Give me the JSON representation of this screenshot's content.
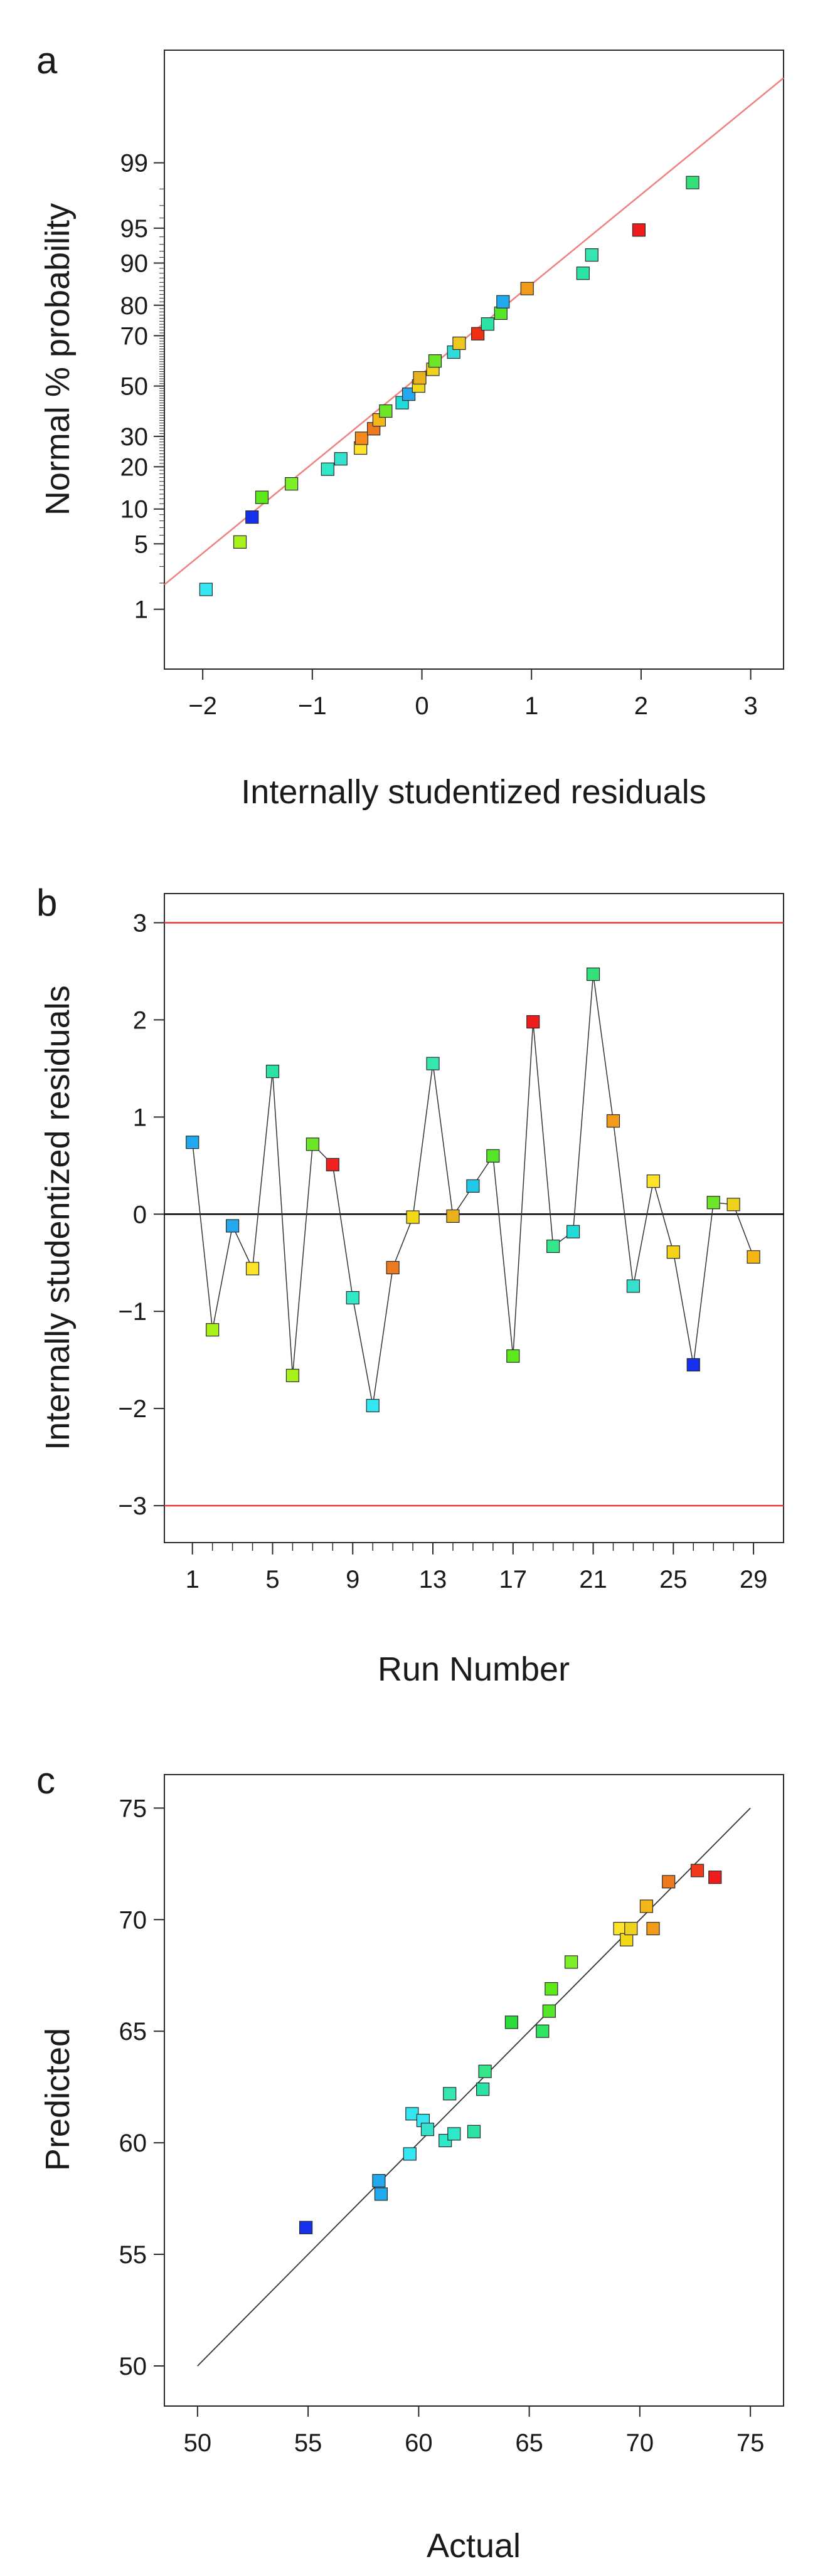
{
  "figure": {
    "panels": [
      "a",
      "b",
      "c"
    ]
  },
  "colors": {
    "fit_line": "#f08080",
    "control_limit": "#e83a3a",
    "zero_line": "#000000",
    "connector": "#333333",
    "diagonal": "#333333",
    "axis": "#2a2a2a"
  },
  "chart_data": [
    {
      "panel": "a",
      "type": "scatter",
      "subtype": "normal-probability-plot",
      "title": "",
      "xlabel": "Internally studentized residuals",
      "ylabel": "Normal % probability",
      "xlim": [
        -2.35,
        3.3
      ],
      "xticks": [
        -2,
        -1,
        0,
        1,
        2,
        3
      ],
      "ylim_z": [
        -2.95,
        3.5
      ],
      "yticks": [
        1,
        5,
        10,
        20,
        30,
        50,
        70,
        80,
        90,
        95,
        99
      ],
      "fit_line": {
        "x": [
          -2.35,
          3.3
        ],
        "z": [
          -2.07,
          3.21
        ]
      },
      "points": [
        {
          "x": -1.97,
          "p": 1.7,
          "color": "#33e6f2"
        },
        {
          "x": -1.66,
          "p": 5.2,
          "color": "#a8f21a"
        },
        {
          "x": -1.55,
          "p": 8.6,
          "color": "#1430ec"
        },
        {
          "x": -1.46,
          "p": 12.3,
          "color": "#5eea1a"
        },
        {
          "x": -1.19,
          "p": 15.4,
          "color": "#7ef02a"
        },
        {
          "x": -0.86,
          "p": 19.3,
          "color": "#2fe8c8"
        },
        {
          "x": -0.74,
          "p": 22.4,
          "color": "#35e0cc"
        },
        {
          "x": -0.56,
          "p": 25.9,
          "color": "#fce32a"
        },
        {
          "x": -0.55,
          "p": 29.3,
          "color": "#f28a1c"
        },
        {
          "x": -0.44,
          "p": 32.8,
          "color": "#ee7a1f"
        },
        {
          "x": -0.39,
          "p": 36.2,
          "color": "#f5b716"
        },
        {
          "x": -0.33,
          "p": 39.7,
          "color": "#6ee628"
        },
        {
          "x": -0.18,
          "p": 43.1,
          "color": "#20dcd8"
        },
        {
          "x": -0.12,
          "p": 46.6,
          "color": "#25a8ee"
        },
        {
          "x": -0.03,
          "p": 50.0,
          "color": "#f3d818"
        },
        {
          "x": -0.02,
          "p": 53.4,
          "color": "#e7b21c"
        },
        {
          "x": 0.1,
          "p": 56.9,
          "color": "#eed21d"
        },
        {
          "x": 0.12,
          "p": 60.3,
          "color": "#6ee628"
        },
        {
          "x": 0.29,
          "p": 63.8,
          "color": "#2fdcd8"
        },
        {
          "x": 0.34,
          "p": 67.2,
          "color": "#eec81e"
        },
        {
          "x": 0.51,
          "p": 70.7,
          "color": "#ef2e14"
        },
        {
          "x": 0.6,
          "p": 74.1,
          "color": "#2be3a6"
        },
        {
          "x": 0.72,
          "p": 77.6,
          "color": "#55e62a"
        },
        {
          "x": 0.74,
          "p": 81.0,
          "color": "#20a9ee"
        },
        {
          "x": 0.96,
          "p": 84.5,
          "color": "#f29a1a"
        },
        {
          "x": 1.47,
          "p": 88.0,
          "color": "#2be3a6"
        },
        {
          "x": 1.55,
          "p": 91.4,
          "color": "#35e6b0"
        },
        {
          "x": 1.98,
          "p": 94.8,
          "color": "#ee1c1c"
        },
        {
          "x": 2.47,
          "p": 98.3,
          "color": "#33e07a"
        }
      ]
    },
    {
      "panel": "b",
      "type": "line",
      "subtype": "residuals-vs-run",
      "title": "",
      "xlabel": "Run Number",
      "ylabel": "Internally studentized residuals",
      "xlim": [
        -0.4,
        30.5
      ],
      "xticks": [
        1,
        5,
        9,
        13,
        17,
        21,
        25,
        29
      ],
      "ylim": [
        -3.38,
        3.3
      ],
      "yticks": [
        -3,
        -2,
        -1,
        0,
        1,
        2,
        3
      ],
      "control_limits": [
        3,
        -3
      ],
      "x": [
        1,
        2,
        3,
        4,
        5,
        6,
        7,
        8,
        9,
        10,
        11,
        12,
        13,
        14,
        15,
        16,
        17,
        18,
        19,
        20,
        21,
        22,
        23,
        24,
        25,
        26,
        27,
        28,
        29
      ],
      "values": [
        0.74,
        -1.19,
        -0.12,
        -0.56,
        1.47,
        -1.66,
        0.72,
        0.51,
        -0.86,
        -1.97,
        -0.55,
        -0.03,
        1.55,
        -0.02,
        0.29,
        0.6,
        -1.46,
        1.98,
        -0.33,
        -0.18,
        2.47,
        0.96,
        -0.74,
        0.34,
        -0.39,
        -1.55,
        0.12,
        0.1,
        -0.44
      ],
      "colors": [
        "#20a9ee",
        "#a8f21a",
        "#25a8ee",
        "#fce32a",
        "#2be3a6",
        "#a8f21a",
        "#6ee628",
        "#ee2020",
        "#2fe8c8",
        "#33e6f2",
        "#ee7a1f",
        "#f3d818",
        "#35e6b0",
        "#e7b21c",
        "#20c9e8",
        "#55e62a",
        "#5eea1a",
        "#ee1c1c",
        "#35e68a",
        "#20dcd8",
        "#33e07a",
        "#f29a1a",
        "#35e0cc",
        "#fce32a",
        "#f5d318",
        "#1430ec",
        "#6ee628",
        "#eed21d",
        "#f5b716"
      ]
    },
    {
      "panel": "c",
      "type": "scatter",
      "subtype": "predicted-vs-actual",
      "title": "",
      "xlabel": "Actual",
      "ylabel": "Predicted",
      "xlim": [
        48.5,
        76.5
      ],
      "xticks": [
        50,
        55,
        60,
        65,
        70,
        75
      ],
      "ylim": [
        48.2,
        76.5
      ],
      "yticks": [
        50,
        55,
        60,
        65,
        70,
        75
      ],
      "diagonal": [
        [
          50,
          50
        ],
        [
          75,
          75
        ]
      ],
      "points": [
        {
          "x": 54.9,
          "y": 56.2,
          "color": "#1430ec"
        },
        {
          "x": 58.2,
          "y": 58.3,
          "color": "#20a9ee"
        },
        {
          "x": 58.3,
          "y": 57.7,
          "color": "#20a9ee"
        },
        {
          "x": 59.6,
          "y": 59.5,
          "color": "#33e6f2"
        },
        {
          "x": 59.7,
          "y": 61.3,
          "color": "#33e6f2"
        },
        {
          "x": 60.2,
          "y": 61.0,
          "color": "#33e6f2"
        },
        {
          "x": 60.4,
          "y": 60.6,
          "color": "#35e0cc"
        },
        {
          "x": 61.2,
          "y": 60.1,
          "color": "#2fe8c8"
        },
        {
          "x": 61.4,
          "y": 62.2,
          "color": "#35e6b0"
        },
        {
          "x": 61.6,
          "y": 60.4,
          "color": "#2fe8c8"
        },
        {
          "x": 62.5,
          "y": 60.5,
          "color": "#2be3a6"
        },
        {
          "x": 62.9,
          "y": 62.4,
          "color": "#2be3a6"
        },
        {
          "x": 63.0,
          "y": 63.2,
          "color": "#35e68a"
        },
        {
          "x": 64.2,
          "y": 65.4,
          "color": "#2bdc3a"
        },
        {
          "x": 65.6,
          "y": 65.0,
          "color": "#2ee660"
        },
        {
          "x": 65.9,
          "y": 65.9,
          "color": "#55e62a"
        },
        {
          "x": 66.0,
          "y": 66.9,
          "color": "#5eea1a"
        },
        {
          "x": 66.9,
          "y": 68.1,
          "color": "#7ef02a"
        },
        {
          "x": 69.1,
          "y": 69.6,
          "color": "#fce32a"
        },
        {
          "x": 69.4,
          "y": 69.1,
          "color": "#f3d818"
        },
        {
          "x": 69.6,
          "y": 69.6,
          "color": "#eed21d"
        },
        {
          "x": 70.3,
          "y": 70.6,
          "color": "#f5b716"
        },
        {
          "x": 70.6,
          "y": 69.6,
          "color": "#f29a1a"
        },
        {
          "x": 71.3,
          "y": 71.7,
          "color": "#ee7a1f"
        },
        {
          "x": 72.6,
          "y": 72.2,
          "color": "#ef3a1c"
        },
        {
          "x": 73.4,
          "y": 71.9,
          "color": "#ee1c1c"
        }
      ]
    }
  ]
}
